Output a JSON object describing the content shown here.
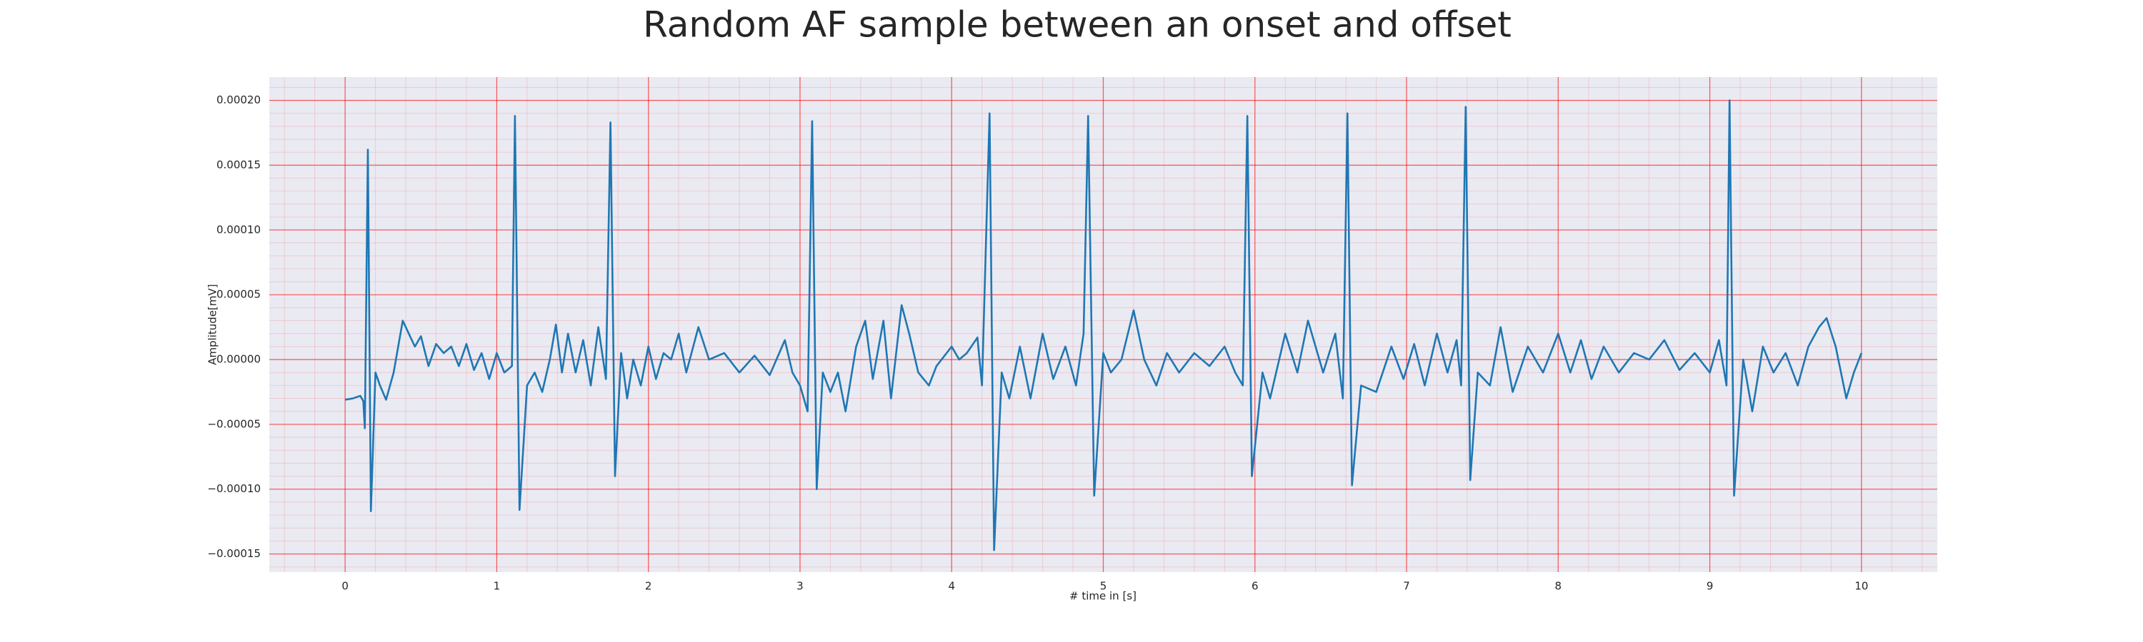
{
  "chart_data": {
    "type": "line",
    "title": "Random AF sample between an onset and offset",
    "xlabel": "# time in [s]",
    "ylabel": "Amplitude[mV]",
    "x": [
      0,
      0.05,
      0.1,
      0.12,
      0.13,
      0.15,
      0.17,
      0.2,
      0.23,
      0.27,
      0.32,
      0.38,
      0.42,
      0.46,
      0.5,
      0.55,
      0.6,
      0.65,
      0.7,
      0.75,
      0.8,
      0.85,
      0.9,
      0.95,
      1.0,
      1.05,
      1.1,
      1.12,
      1.15,
      1.2,
      1.25,
      1.3,
      1.35,
      1.39,
      1.43,
      1.47,
      1.52,
      1.57,
      1.62,
      1.67,
      1.72,
      1.75,
      1.78,
      1.82,
      1.86,
      1.9,
      1.95,
      2.0,
      2.05,
      2.1,
      2.15,
      2.2,
      2.25,
      2.33,
      2.4,
      2.5,
      2.6,
      2.7,
      2.8,
      2.9,
      2.95,
      3.0,
      3.05,
      3.08,
      3.11,
      3.15,
      3.2,
      3.25,
      3.3,
      3.37,
      3.43,
      3.48,
      3.55,
      3.6,
      3.67,
      3.72,
      3.78,
      3.85,
      3.9,
      4.0,
      4.05,
      4.1,
      4.17,
      4.2,
      4.25,
      4.28,
      4.33,
      4.38,
      4.45,
      4.52,
      4.6,
      4.67,
      4.75,
      4.82,
      4.87,
      4.9,
      4.94,
      5.0,
      5.05,
      5.12,
      5.2,
      5.27,
      5.35,
      5.42,
      5.5,
      5.6,
      5.7,
      5.8,
      5.87,
      5.92,
      5.95,
      5.98,
      6.05,
      6.1,
      6.2,
      6.28,
      6.35,
      6.45,
      6.53,
      6.58,
      6.61,
      6.64,
      6.7,
      6.8,
      6.9,
      6.98,
      7.05,
      7.12,
      7.2,
      7.27,
      7.33,
      7.36,
      7.39,
      7.42,
      7.47,
      7.55,
      7.62,
      7.7,
      7.8,
      7.9,
      8.0,
      8.08,
      8.15,
      8.22,
      8.3,
      8.4,
      8.5,
      8.6,
      8.7,
      8.8,
      8.9,
      9.0,
      9.06,
      9.11,
      9.13,
      9.16,
      9.22,
      9.28,
      9.35,
      9.42,
      9.5,
      9.58,
      9.65,
      9.72,
      9.77,
      9.83,
      9.9,
      9.95,
      10.0
    ],
    "series": [
      {
        "color": "#1f77b4",
        "values": [
          -3.1e-05,
          -3e-05,
          -2.8e-05,
          -3.2e-05,
          -5.3e-05,
          0.000162,
          -0.000117,
          -1e-05,
          -2e-05,
          -3.1e-05,
          -1e-05,
          3e-05,
          2e-05,
          1e-05,
          1.8e-05,
          -5e-06,
          1.2e-05,
          5e-06,
          1e-05,
          -5e-06,
          1.2e-05,
          -8e-06,
          5e-06,
          -1.5e-05,
          5e-06,
          -1e-05,
          -5e-06,
          0.000188,
          -0.000116,
          -2e-05,
          -1e-05,
          -2.5e-05,
          0,
          2.7e-05,
          -1e-05,
          2e-05,
          -1e-05,
          1.5e-05,
          -2e-05,
          2.5e-05,
          -1.5e-05,
          0.000183,
          -9e-05,
          5e-06,
          -3e-05,
          0,
          -2e-05,
          1e-05,
          -1.5e-05,
          5e-06,
          0,
          2e-05,
          -1e-05,
          2.5e-05,
          0,
          5e-06,
          -1e-05,
          3e-06,
          -1.2e-05,
          1.5e-05,
          -1e-05,
          -2e-05,
          -4e-05,
          0.000184,
          -0.0001,
          -1e-05,
          -2.5e-05,
          -1e-05,
          -4e-05,
          1e-05,
          3e-05,
          -1.5e-05,
          3e-05,
          -3e-05,
          4.2e-05,
          2e-05,
          -1e-05,
          -2e-05,
          -5e-06,
          1e-05,
          0,
          5e-06,
          1.7e-05,
          -2e-05,
          0.00019,
          -0.000147,
          -1e-05,
          -3e-05,
          1e-05,
          -3e-05,
          2e-05,
          -1.5e-05,
          1e-05,
          -2e-05,
          2e-05,
          0.000188,
          -0.000105,
          5e-06,
          -1e-05,
          0,
          3.8e-05,
          0,
          -2e-05,
          5e-06,
          -1e-05,
          5e-06,
          -5e-06,
          1e-05,
          -1e-05,
          -2e-05,
          0.000188,
          -9e-05,
          -1e-05,
          -3e-05,
          2e-05,
          -1e-05,
          3e-05,
          -1e-05,
          2e-05,
          -3e-05,
          0.00019,
          -9.7e-05,
          -2e-05,
          -2.5e-05,
          1e-05,
          -1.5e-05,
          1.2e-05,
          -2e-05,
          2e-05,
          -1e-05,
          1.5e-05,
          -2e-05,
          0.000195,
          -9.3e-05,
          -1e-05,
          -2e-05,
          2.5e-05,
          -2.5e-05,
          1e-05,
          -1e-05,
          2e-05,
          -1e-05,
          1.5e-05,
          -1.5e-05,
          1e-05,
          -1e-05,
          5e-06,
          0,
          1.5e-05,
          -8e-06,
          5e-06,
          -1e-05,
          1.5e-05,
          -2e-05,
          0.0002,
          -0.000105,
          0,
          -4e-05,
          1e-05,
          -1e-05,
          5e-06,
          -2e-05,
          1e-05,
          2.5e-05,
          3.2e-05,
          1e-05,
          -3e-05,
          -1e-05,
          5e-06
        ]
      }
    ],
    "xlim": [
      -0.5,
      10.5
    ],
    "xticks": [
      0,
      1,
      2,
      3,
      4,
      5,
      6,
      7,
      8,
      9,
      10
    ],
    "ylim": [
      -0.000164,
      0.000218
    ],
    "yticks": [
      {
        "value": -0.00015,
        "label": "−0.00015"
      },
      {
        "value": -0.0001,
        "label": "−0.00010"
      },
      {
        "value": -5e-05,
        "label": "−0.00005"
      },
      {
        "value": 0,
        "label": "0.00000"
      },
      {
        "value": 5e-05,
        "label": "0.00005"
      },
      {
        "value": 0.0001,
        "label": "0.00010"
      },
      {
        "value": 0.00015,
        "label": "0.00015"
      },
      {
        "value": 0.0002,
        "label": "0.00020"
      }
    ],
    "grid": true,
    "minor_grid": true,
    "grid_color": "#ff0000"
  }
}
